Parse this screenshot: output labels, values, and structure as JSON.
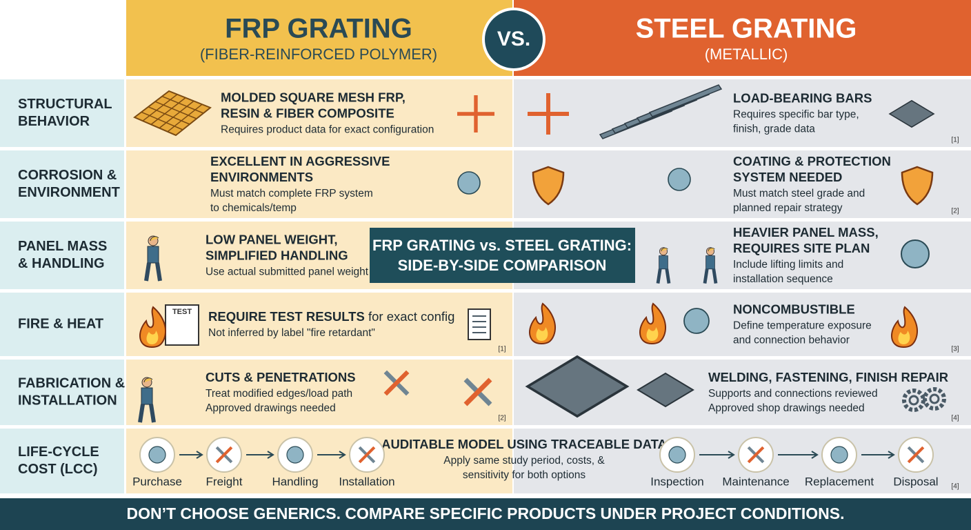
{
  "header": {
    "left_title": "FRP GRATING",
    "left_subtitle": "(FIBER-REINFORCED POLYMER)",
    "vs": "VS.",
    "right_title": "STEEL GRATING",
    "right_subtitle": "(METALLIC)"
  },
  "banner": [
    "FRP GRATING vs. STEEL GRATING:",
    "SIDE-BY-SIDE COMPARISON"
  ],
  "rows": [
    {
      "label": [
        "STRUCTURAL",
        "BEHAVIOR"
      ],
      "frp": {
        "heading": [
          "MOLDED SQUARE MESH FRP,",
          "RESIN & FIBER COMPOSITE"
        ],
        "text": [
          "Requires product data for exact configuration"
        ]
      },
      "steel": {
        "heading": [
          "LOAD-BEARING BARS"
        ],
        "text": [
          "Requires specific bar type,",
          "finish, grade data"
        ],
        "ref": "[1]"
      }
    },
    {
      "label": [
        "CORROSION &",
        "ENVIRONMENT"
      ],
      "frp": {
        "heading": [
          "EXCELLENT IN AGGRESSIVE",
          "ENVIRONMENTS"
        ],
        "text": [
          "Must match complete FRP system",
          "to chemicals/temp"
        ]
      },
      "steel": {
        "heading": [
          "COATING & PROTECTION",
          "SYSTEM NEEDED"
        ],
        "text": [
          "Must match steel grade and",
          "planned repair strategy"
        ],
        "ref": "[2]"
      }
    },
    {
      "label": [
        "PANEL MASS",
        "& HANDLING"
      ],
      "frp": {
        "heading": [
          "LOW PANEL WEIGHT,",
          "SIMPLIFIED HANDLING"
        ],
        "text": [
          "Use actual submitted panel weight"
        ]
      },
      "steel": {
        "heading": [
          "HEAVIER PANEL MASS,",
          "REQUIRES SITE PLAN"
        ],
        "text": [
          "Include lifting limits and",
          "installation sequence"
        ]
      }
    },
    {
      "label": [
        "FIRE & HEAT"
      ],
      "frp": {
        "heading": [
          "REQUIRE TEST RESULTS"
        ],
        "heading_suffix": " for exact config",
        "text": [
          "Not inferred by label \"fire retardant\""
        ],
        "badge": "TEST",
        "ref": "[1]"
      },
      "steel": {
        "heading": [
          "NONCOMBUSTIBLE"
        ],
        "text": [
          "Define temperature exposure",
          "and connection behavior"
        ],
        "ref": "[3]"
      }
    },
    {
      "label": [
        "FABRICATION &",
        "INSTALLATION"
      ],
      "frp": {
        "heading": [
          "CUTS & PENETRATIONS"
        ],
        "text": [
          "Treat modified edges/load path",
          "Approved drawings needed"
        ],
        "ref": "[2]"
      },
      "steel": {
        "heading": [
          "WELDING, FASTENING, FINISH REPAIR"
        ],
        "text": [
          "Supports and connections reviewed",
          "Approved shop drawings needed"
        ],
        "ref": "[4]"
      }
    },
    {
      "label": [
        "LIFE-CYCLE",
        "COST (LCC)"
      ],
      "frp": {
        "steps": [
          "Purchase",
          "Freight",
          "Handling",
          "Installation"
        ]
      },
      "center": {
        "heading": [
          "AUDITABLE MODEL USING TRACEABLE DATA"
        ],
        "text": [
          "Apply same study period, costs, &",
          "sensitivity for both options"
        ]
      },
      "steel": {
        "steps": [
          "Inspection",
          "Maintenance",
          "Replacement",
          "Disposal"
        ],
        "ref": "[4]"
      }
    }
  ],
  "footer": "DON’T CHOOSE GENERICS. COMPARE SPECIFIC PRODUCTS UNDER PROJECT CONDITIONS."
}
